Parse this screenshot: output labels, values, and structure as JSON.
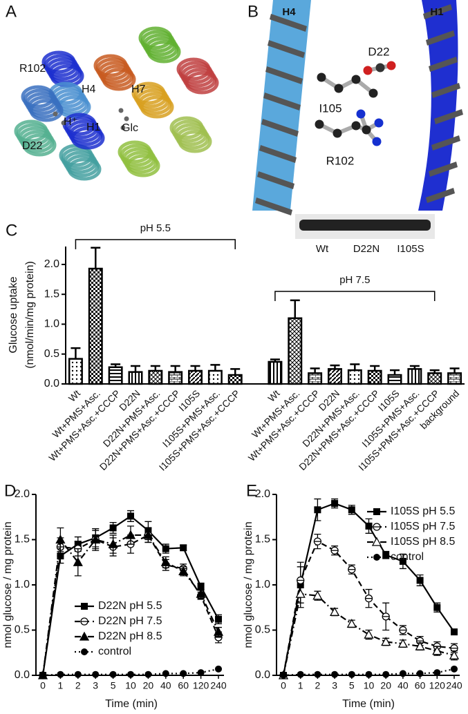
{
  "figure": {
    "panel_labels": [
      "A",
      "B",
      "C",
      "D",
      "E"
    ],
    "structure_a": {
      "labels": [
        "R102",
        "H4",
        "H7",
        "H⁺",
        "H1",
        "D22",
        "Glc"
      ]
    },
    "structure_b": {
      "labels": [
        "H4",
        "H1",
        "D22",
        "I105",
        "R102"
      ]
    },
    "blot": {
      "lanes": [
        "Wt",
        "D22N",
        "I105S"
      ]
    }
  },
  "chart_data": [
    {
      "type": "bar",
      "ylabel": [
        "Glucose uptake",
        "(nmol/min/mg protein)"
      ],
      "categories": [
        "Wt",
        "Wt+PMS+Asc.",
        "Wt+PMS+Asc.+CCCP",
        "D22N",
        "D22N+PMS+Asc.",
        "D22N+PMS+Asc.+CCCP",
        "I105S",
        "I105S+PMS+Asc.",
        "I105S+PMS+Asc.+CCCP",
        null,
        "Wt",
        "Wt+PMS+Asc.",
        "Wt+PMS+Asc.+CCCP",
        "D22N",
        "D22N+PMS+Asc.",
        "D22N+PMS+Asc.+CCCP",
        "I105S",
        "I105S+PMS+Asc.",
        "I105S+PMS+Asc.+CCCP",
        "background"
      ],
      "values": [
        0.42,
        1.93,
        0.28,
        0.2,
        0.22,
        0.2,
        0.22,
        0.22,
        0.15,
        null,
        0.37,
        1.1,
        0.18,
        0.25,
        0.23,
        0.22,
        0.15,
        0.25,
        0.18,
        0.18
      ],
      "errors": [
        0.18,
        0.35,
        0.05,
        0.1,
        0.08,
        0.1,
        0.08,
        0.1,
        0.1,
        null,
        0.04,
        0.3,
        0.08,
        0.06,
        0.1,
        0.08,
        0.08,
        0.05,
        0.05,
        0.08
      ],
      "annotations": [
        {
          "text": "pH 5.5"
        },
        {
          "text": "pH 7.5"
        }
      ],
      "ylim": [
        0,
        2.3
      ],
      "yticks": [
        {
          "value": 0,
          "label": "0.0"
        },
        0.5,
        {
          "value": 1,
          "label": "1.0"
        },
        1.5,
        {
          "value": 2,
          "label": "2.0"
        }
      ],
      "color": "#000000"
    },
    {
      "type": "line",
      "xlabel": "Time (min)",
      "ylabel": "nmol glucose / mg protein",
      "categories": [
        "0",
        "1",
        "2",
        "3",
        "5",
        "10",
        "20",
        "40",
        "60",
        "120",
        "240"
      ],
      "ylim": [
        0,
        2.0
      ],
      "yticks": [
        {
          "value": 0,
          "label": "0.0"
        },
        0.5,
        {
          "value": 1,
          "label": "1.0"
        },
        1.5,
        {
          "value": 2,
          "label": "2.0"
        }
      ],
      "series": [
        {
          "name": "D22N pH 5.5",
          "color": "#000000",
          "marker": "square",
          "dash": "solid",
          "values": [
            0,
            1.32,
            1.45,
            1.52,
            1.63,
            1.76,
            1.6,
            1.4,
            1.41,
            0.98,
            0.62
          ],
          "errors": [
            0,
            0.08,
            0.08,
            0.1,
            0.06,
            0.06,
            0.1,
            0.05,
            0.03,
            0.04,
            0.05
          ]
        },
        {
          "name": "D22N pH 7.5",
          "color": "#000000",
          "marker": "circle-half",
          "dash": "dashed",
          "values": [
            0,
            1.42,
            1.4,
            1.5,
            1.42,
            1.45,
            1.55,
            1.22,
            1.18,
            0.88,
            0.42
          ],
          "errors": [
            0,
            0.1,
            0.08,
            0.1,
            0.1,
            0.1,
            0.08,
            0.06,
            0.05,
            0.04,
            0.06
          ]
        },
        {
          "name": "D22N pH 8.5",
          "color": "#000000",
          "marker": "triangle",
          "dash": "dashdot",
          "values": [
            0,
            1.5,
            1.25,
            1.5,
            1.45,
            1.55,
            1.55,
            1.25,
            1.15,
            0.9,
            0.48
          ],
          "errors": [
            0,
            0.13,
            0.15,
            0.12,
            0.1,
            0.1,
            0.08,
            0.06,
            0.05,
            0.05,
            0.05
          ]
        },
        {
          "name": "control",
          "color": "#000000",
          "marker": "circle",
          "dash": "dotted",
          "values": [
            0,
            0.01,
            0.01,
            0.01,
            0.01,
            0.01,
            0.01,
            0.02,
            0.02,
            0.03,
            0.07
          ],
          "errors": [
            0,
            0,
            0,
            0,
            0,
            0,
            0,
            0,
            0,
            0,
            0
          ]
        }
      ]
    },
    {
      "type": "line",
      "xlabel": "Time (min)",
      "ylabel": "nmol glucose / mg protein",
      "categories": [
        "0",
        "1",
        "2",
        "3",
        "5",
        "10",
        "20",
        "40",
        "60",
        "120",
        "240"
      ],
      "ylim": [
        0,
        2.0
      ],
      "yticks": [
        {
          "value": 0,
          "label": "0.0"
        },
        0.5,
        {
          "value": 1,
          "label": "1.0"
        },
        1.5,
        {
          "value": 2,
          "label": "2.0"
        }
      ],
      "series": [
        {
          "name": "I105S pH 5.5",
          "color": "#000000",
          "marker": "square",
          "dash": "solid",
          "values": [
            0,
            1.0,
            1.83,
            1.9,
            1.83,
            1.65,
            1.33,
            1.26,
            1.05,
            0.75,
            0.48
          ],
          "errors": [
            0,
            0.25,
            0.12,
            0.05,
            0.05,
            0.08,
            0.04,
            0.08,
            0.06,
            0.05,
            0.03
          ]
        },
        {
          "name": "I105S pH 7.5",
          "color": "#000000",
          "marker": "circle-half",
          "dash": "dashed",
          "values": [
            0,
            1.05,
            1.48,
            1.38,
            1.17,
            0.85,
            0.65,
            0.5,
            0.38,
            0.32,
            0.3
          ],
          "errors": [
            0,
            0.15,
            0.08,
            0.05,
            0.05,
            0.1,
            0.15,
            0.05,
            0.05,
            0.05,
            0.05
          ]
        },
        {
          "name": "I105S pH 8.5",
          "color": "#000000",
          "marker": "triangle-open",
          "dash": "dashdot",
          "values": [
            0,
            0.9,
            0.88,
            0.7,
            0.57,
            0.45,
            0.37,
            0.35,
            0.32,
            0.27,
            0.22
          ],
          "errors": [
            0,
            0.1,
            0.05,
            0.04,
            0.04,
            0.05,
            0.04,
            0.04,
            0.04,
            0.05,
            0.05
          ]
        },
        {
          "name": "control",
          "color": "#000000",
          "marker": "circle",
          "dash": "dotted",
          "values": [
            0,
            0.01,
            0.01,
            0.01,
            0.01,
            0.01,
            0.01,
            0.02,
            0.02,
            0.03,
            0.07
          ],
          "errors": [
            0,
            0,
            0,
            0,
            0,
            0,
            0,
            0,
            0,
            0,
            0
          ]
        }
      ]
    }
  ]
}
